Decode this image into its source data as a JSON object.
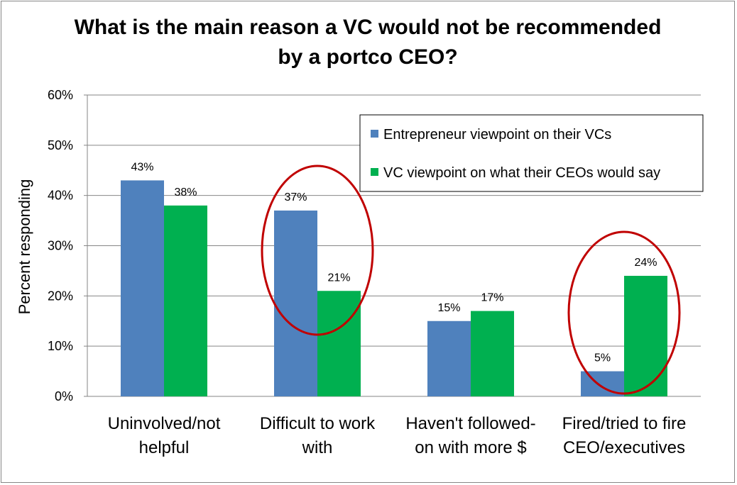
{
  "chart_data": {
    "type": "bar",
    "title_lines": [
      "What is the main reason a VC would not be recommended",
      "by a portco CEO?"
    ],
    "ylabel": "Percent responding",
    "ylim": [
      0,
      60
    ],
    "yticks": [
      "0%",
      "10%",
      "20%",
      "30%",
      "40%",
      "50%",
      "60%"
    ],
    "categories": [
      [
        "Uninvolved/not",
        "helpful"
      ],
      [
        "Difficult to work",
        "with"
      ],
      [
        "Haven't followed-",
        "on with more $"
      ],
      [
        "Fired/tried to fire",
        "CEO/executives"
      ]
    ],
    "series": [
      {
        "name": "Entrepreneur viewpoint on their VCs",
        "color": "#4F81BD",
        "values": [
          43,
          37,
          15,
          5
        ],
        "labels": [
          "43%",
          "37%",
          "15%",
          "5%"
        ]
      },
      {
        "name": "VC viewpoint on what their CEOs would say",
        "color": "#00B050",
        "values": [
          38,
          21,
          17,
          24
        ],
        "labels": [
          "38%",
          "21%",
          "17%",
          "24%"
        ]
      }
    ],
    "grid": true,
    "legend_position": "top-right",
    "highlight_ellipses": [
      1,
      3
    ],
    "highlight_color": "#C00000"
  }
}
